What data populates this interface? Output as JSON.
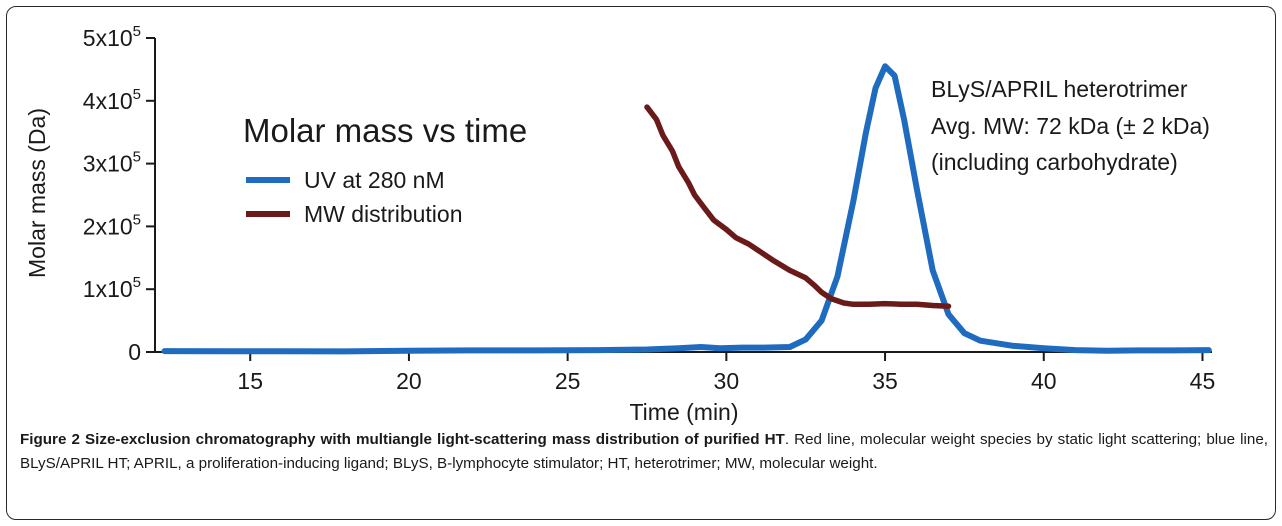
{
  "chart_data": {
    "type": "line",
    "title": "Molar mass vs time",
    "xlabel": "Time (min)",
    "ylabel": "Molar mass (Da)",
    "xlim": [
      12,
      45.3
    ],
    "ylim": [
      0,
      500000
    ],
    "x_ticks": [
      15,
      20,
      25,
      30,
      35,
      40,
      45
    ],
    "y_ticks": [
      {
        "value": 0,
        "mantissa": "0",
        "exp": ""
      },
      {
        "value": 100000,
        "mantissa": "1x10",
        "exp": "5"
      },
      {
        "value": 200000,
        "mantissa": "2x10",
        "exp": "5"
      },
      {
        "value": 300000,
        "mantissa": "3x10",
        "exp": "5"
      },
      {
        "value": 400000,
        "mantissa": "4x10",
        "exp": "5"
      },
      {
        "value": 500000,
        "mantissa": "5x10",
        "exp": "5"
      }
    ],
    "grid": false,
    "legend": "upper-left",
    "series": [
      {
        "name": "UV at 280 nM",
        "color": "#1f6bbf",
        "x": [
          12.3,
          14,
          16,
          18,
          20,
          22,
          24,
          26,
          27.5,
          28.5,
          29.2,
          29.8,
          30.5,
          31.2,
          32.0,
          32.5,
          33.0,
          33.5,
          34.0,
          34.4,
          34.7,
          35.0,
          35.3,
          35.6,
          36.0,
          36.5,
          37.0,
          37.5,
          38.0,
          39.0,
          40.0,
          41.0,
          42.0,
          43.0,
          44.0,
          45.2
        ],
        "y": [
          1500,
          1200,
          1200,
          1000,
          2000,
          2500,
          2500,
          3000,
          4000,
          6000,
          8000,
          6000,
          7000,
          7000,
          8000,
          20000,
          50000,
          120000,
          240000,
          350000,
          420000,
          455000,
          440000,
          370000,
          260000,
          130000,
          60000,
          30000,
          18000,
          10000,
          6000,
          3000,
          2000,
          2500,
          2500,
          3000
        ]
      },
      {
        "name": "MW distribution",
        "color": "#6b1a1a",
        "x": [
          27.5,
          27.8,
          28.0,
          28.3,
          28.5,
          28.8,
          29.0,
          29.3,
          29.6,
          30.0,
          30.3,
          30.7,
          31.0,
          31.5,
          32.0,
          32.5,
          32.8,
          33.0,
          33.3,
          33.7,
          34.0,
          34.5,
          35.0,
          35.5,
          36.0,
          36.5,
          37.0
        ],
        "y": [
          390000,
          370000,
          345000,
          320000,
          295000,
          270000,
          250000,
          230000,
          210000,
          195000,
          182000,
          172000,
          162000,
          145000,
          130000,
          118000,
          105000,
          95000,
          85000,
          78000,
          76000,
          76000,
          77000,
          76000,
          76000,
          74000,
          73000
        ]
      }
    ],
    "annotation": [
      "BLyS/APRIL heterotrimer",
      "Avg. MW: 72 kDa (± 2 kDa)",
      "(including carbohydrate)"
    ]
  },
  "caption": {
    "label": "Figure 2 Size-exclusion chromatography with multiangle light-scattering mass distribution of purified HT",
    "text": ". Red line, molecular weight species by static light scattering; blue line, BLyS/APRIL HT; APRIL, a proliferation-inducing ligand; BLyS, B-lymphocyte stimulator; HT, heterotrimer; MW, molecular weight."
  }
}
